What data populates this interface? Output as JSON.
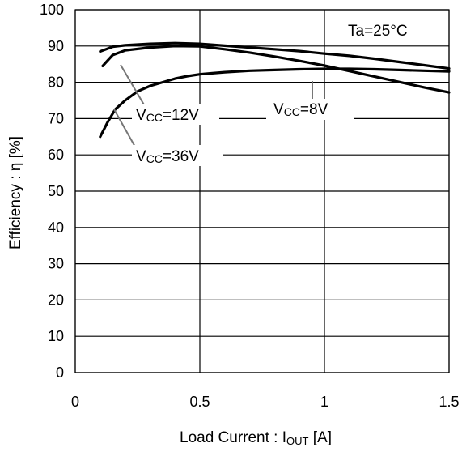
{
  "chart_data": {
    "type": "line",
    "title": "",
    "xlabel": "Load Current : IOUT [A]",
    "xlabel_parts": {
      "main": "Load Current : I",
      "sub": "OUT",
      "tail": " [A]"
    },
    "ylabel": "Efficiency : η [%]",
    "xlim": [
      0,
      1.5
    ],
    "ylim": [
      0,
      100
    ],
    "x_ticks": [
      0,
      0.5,
      1,
      1.5
    ],
    "y_ticks": [
      0,
      10,
      20,
      30,
      40,
      50,
      60,
      70,
      80,
      90,
      100
    ],
    "x_tick_labels": [
      "0",
      "0.5",
      "1",
      "1.5"
    ],
    "y_tick_labels": [
      "0",
      "10",
      "20",
      "30",
      "40",
      "50",
      "60",
      "70",
      "80",
      "90",
      "100"
    ],
    "grid": true,
    "annotations": {
      "condition": "Ta=25°C"
    },
    "series": [
      {
        "name": "VCC=8V",
        "name_parts": {
          "main": "V",
          "sub": "CC",
          "tail": "=8V"
        },
        "x": [
          0.1,
          0.15,
          0.2,
          0.3,
          0.4,
          0.5,
          0.6,
          0.7,
          0.8,
          0.9,
          1.0,
          1.1,
          1.2,
          1.3,
          1.4,
          1.5
        ],
        "y": [
          88.5,
          89.8,
          90.2,
          90.6,
          90.8,
          90.6,
          90.1,
          89.6,
          89.1,
          88.6,
          87.9,
          87.3,
          86.5,
          85.6,
          84.7,
          83.8
        ]
      },
      {
        "name": "VCC=12V",
        "name_parts": {
          "main": "V",
          "sub": "CC",
          "tail": "=12V"
        },
        "x": [
          0.11,
          0.15,
          0.2,
          0.3,
          0.4,
          0.5,
          0.6,
          0.7,
          0.8,
          0.9,
          1.0,
          1.1,
          1.2,
          1.3,
          1.4,
          1.5
        ],
        "y": [
          84.5,
          87.5,
          88.8,
          89.6,
          90.0,
          89.9,
          89.1,
          88.2,
          87.1,
          85.9,
          84.6,
          83.1,
          81.6,
          80.1,
          78.6,
          77.2
        ]
      },
      {
        "name": "VCC=36V",
        "name_parts": {
          "main": "V",
          "sub": "CC",
          "tail": "=36V"
        },
        "x": [
          0.1,
          0.13,
          0.16,
          0.2,
          0.25,
          0.3,
          0.35,
          0.4,
          0.45,
          0.5,
          0.55,
          0.6,
          0.7,
          0.8,
          0.9,
          1.0,
          1.1,
          1.2,
          1.3,
          1.4,
          1.5
        ],
        "y": [
          65.0,
          69.0,
          72.5,
          75.0,
          77.5,
          79.0,
          80.0,
          81.0,
          81.7,
          82.2,
          82.5,
          82.8,
          83.2,
          83.4,
          83.6,
          83.7,
          83.7,
          83.6,
          83.4,
          83.2,
          83.0
        ]
      }
    ],
    "colors": {
      "line": "#000000",
      "grid": "#000000",
      "leader": "#777777",
      "background": "#ffffff"
    }
  }
}
